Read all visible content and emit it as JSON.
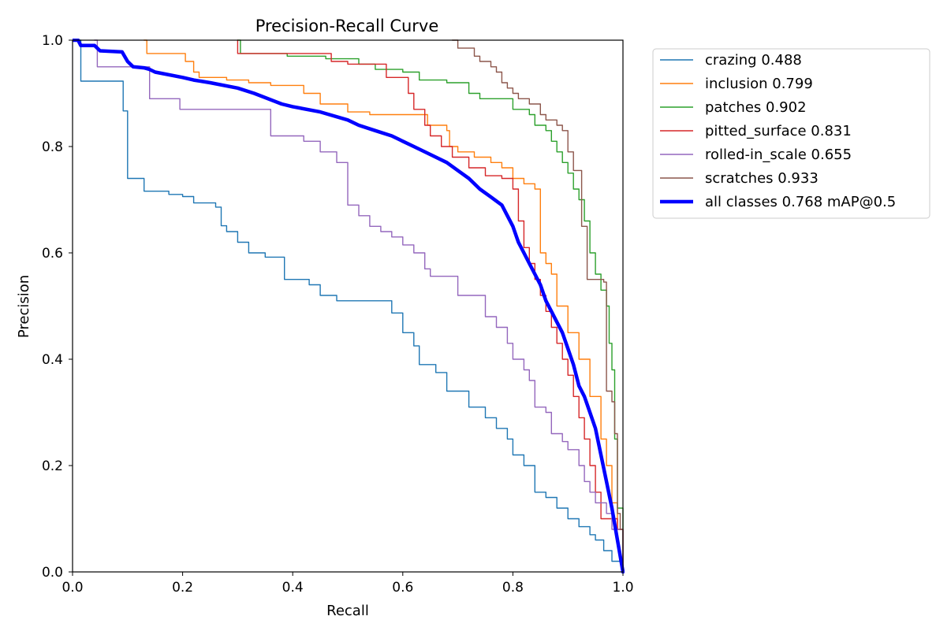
{
  "chart_data": {
    "type": "line",
    "title": "Precision-Recall Curve",
    "xlabel": "Recall",
    "ylabel": "Precision",
    "xlim": [
      0,
      1
    ],
    "ylim": [
      0,
      1
    ],
    "xticks": [
      "0.0",
      "0.2",
      "0.4",
      "0.6",
      "0.8",
      "1.0"
    ],
    "yticks": [
      "0.0",
      "0.2",
      "0.4",
      "0.6",
      "0.8",
      "1.0"
    ],
    "grid": false,
    "legend_position": "outside-top-right",
    "series": [
      {
        "name": "crazing 0.488",
        "color": "#1f77b4",
        "line_width": "thin",
        "step": true,
        "points": [
          [
            0.0,
            1.0
          ],
          [
            0.015,
            0.923
          ],
          [
            0.09,
            0.923
          ],
          [
            0.092,
            0.867
          ],
          [
            0.1,
            0.74
          ],
          [
            0.12,
            0.74
          ],
          [
            0.13,
            0.716
          ],
          [
            0.175,
            0.71
          ],
          [
            0.2,
            0.706
          ],
          [
            0.22,
            0.694
          ],
          [
            0.26,
            0.686
          ],
          [
            0.27,
            0.651
          ],
          [
            0.28,
            0.64
          ],
          [
            0.3,
            0.62
          ],
          [
            0.32,
            0.6
          ],
          [
            0.35,
            0.592
          ],
          [
            0.38,
            0.592
          ],
          [
            0.385,
            0.55
          ],
          [
            0.43,
            0.54
          ],
          [
            0.45,
            0.52
          ],
          [
            0.48,
            0.51
          ],
          [
            0.55,
            0.51
          ],
          [
            0.58,
            0.487
          ],
          [
            0.6,
            0.45
          ],
          [
            0.62,
            0.425
          ],
          [
            0.63,
            0.39
          ],
          [
            0.66,
            0.375
          ],
          [
            0.68,
            0.34
          ],
          [
            0.72,
            0.31
          ],
          [
            0.75,
            0.29
          ],
          [
            0.77,
            0.27
          ],
          [
            0.79,
            0.25
          ],
          [
            0.8,
            0.22
          ],
          [
            0.82,
            0.2
          ],
          [
            0.84,
            0.15
          ],
          [
            0.86,
            0.14
          ],
          [
            0.88,
            0.12
          ],
          [
            0.9,
            0.1
          ],
          [
            0.92,
            0.085
          ],
          [
            0.94,
            0.07
          ],
          [
            0.95,
            0.06
          ],
          [
            0.965,
            0.04
          ],
          [
            0.98,
            0.02
          ],
          [
            1.0,
            0.0
          ]
        ]
      },
      {
        "name": "inclusion 0.799",
        "color": "#ff7f0e",
        "line_width": "thin",
        "step": true,
        "points": [
          [
            0.13,
            1.0
          ],
          [
            0.135,
            0.975
          ],
          [
            0.2,
            0.975
          ],
          [
            0.205,
            0.96
          ],
          [
            0.22,
            0.94
          ],
          [
            0.23,
            0.93
          ],
          [
            0.28,
            0.925
          ],
          [
            0.32,
            0.92
          ],
          [
            0.36,
            0.915
          ],
          [
            0.42,
            0.9
          ],
          [
            0.45,
            0.88
          ],
          [
            0.5,
            0.865
          ],
          [
            0.54,
            0.86
          ],
          [
            0.64,
            0.86
          ],
          [
            0.645,
            0.84
          ],
          [
            0.68,
            0.83
          ],
          [
            0.685,
            0.8
          ],
          [
            0.7,
            0.79
          ],
          [
            0.73,
            0.78
          ],
          [
            0.76,
            0.77
          ],
          [
            0.78,
            0.76
          ],
          [
            0.8,
            0.74
          ],
          [
            0.82,
            0.73
          ],
          [
            0.84,
            0.72
          ],
          [
            0.85,
            0.6
          ],
          [
            0.86,
            0.58
          ],
          [
            0.87,
            0.56
          ],
          [
            0.88,
            0.5
          ],
          [
            0.9,
            0.45
          ],
          [
            0.92,
            0.4
          ],
          [
            0.94,
            0.33
          ],
          [
            0.96,
            0.25
          ],
          [
            0.97,
            0.2
          ],
          [
            0.98,
            0.13
          ],
          [
            0.99,
            0.08
          ],
          [
            1.0,
            0.0
          ]
        ]
      },
      {
        "name": "patches 0.902",
        "color": "#2ca02c",
        "line_width": "thin",
        "step": true,
        "points": [
          [
            0.3,
            1.0
          ],
          [
            0.305,
            0.975
          ],
          [
            0.38,
            0.975
          ],
          [
            0.39,
            0.97
          ],
          [
            0.46,
            0.965
          ],
          [
            0.52,
            0.955
          ],
          [
            0.55,
            0.945
          ],
          [
            0.6,
            0.94
          ],
          [
            0.63,
            0.925
          ],
          [
            0.68,
            0.92
          ],
          [
            0.72,
            0.9
          ],
          [
            0.74,
            0.89
          ],
          [
            0.79,
            0.89
          ],
          [
            0.8,
            0.87
          ],
          [
            0.82,
            0.87
          ],
          [
            0.83,
            0.86
          ],
          [
            0.84,
            0.84
          ],
          [
            0.86,
            0.83
          ],
          [
            0.87,
            0.81
          ],
          [
            0.88,
            0.79
          ],
          [
            0.89,
            0.77
          ],
          [
            0.9,
            0.75
          ],
          [
            0.91,
            0.72
          ],
          [
            0.92,
            0.7
          ],
          [
            0.93,
            0.66
          ],
          [
            0.94,
            0.6
          ],
          [
            0.95,
            0.56
          ],
          [
            0.96,
            0.53
          ],
          [
            0.97,
            0.5
          ],
          [
            0.975,
            0.43
          ],
          [
            0.98,
            0.38
          ],
          [
            0.985,
            0.25
          ],
          [
            0.99,
            0.12
          ],
          [
            1.0,
            0.0
          ]
        ]
      },
      {
        "name": "pitted_surface 0.831",
        "color": "#d62728",
        "line_width": "thin",
        "step": true,
        "points": [
          [
            0.3,
            1.0
          ],
          [
            0.3,
            0.975
          ],
          [
            0.46,
            0.975
          ],
          [
            0.47,
            0.96
          ],
          [
            0.5,
            0.955
          ],
          [
            0.56,
            0.955
          ],
          [
            0.57,
            0.93
          ],
          [
            0.6,
            0.93
          ],
          [
            0.61,
            0.9
          ],
          [
            0.62,
            0.87
          ],
          [
            0.64,
            0.84
          ],
          [
            0.65,
            0.82
          ],
          [
            0.67,
            0.8
          ],
          [
            0.69,
            0.78
          ],
          [
            0.72,
            0.76
          ],
          [
            0.75,
            0.745
          ],
          [
            0.78,
            0.74
          ],
          [
            0.8,
            0.72
          ],
          [
            0.81,
            0.66
          ],
          [
            0.82,
            0.61
          ],
          [
            0.83,
            0.58
          ],
          [
            0.84,
            0.55
          ],
          [
            0.85,
            0.52
          ],
          [
            0.86,
            0.49
          ],
          [
            0.87,
            0.46
          ],
          [
            0.88,
            0.43
          ],
          [
            0.89,
            0.4
          ],
          [
            0.9,
            0.37
          ],
          [
            0.91,
            0.33
          ],
          [
            0.92,
            0.29
          ],
          [
            0.93,
            0.25
          ],
          [
            0.94,
            0.2
          ],
          [
            0.95,
            0.15
          ],
          [
            0.96,
            0.1
          ],
          [
            0.99,
            0.08
          ],
          [
            1.0,
            0.0
          ]
        ]
      },
      {
        "name": "rolled-in_scale 0.655",
        "color": "#9467bd",
        "line_width": "thin",
        "step": true,
        "points": [
          [
            0.04,
            1.0
          ],
          [
            0.045,
            0.95
          ],
          [
            0.13,
            0.95
          ],
          [
            0.14,
            0.89
          ],
          [
            0.19,
            0.89
          ],
          [
            0.195,
            0.87
          ],
          [
            0.35,
            0.87
          ],
          [
            0.36,
            0.82
          ],
          [
            0.42,
            0.81
          ],
          [
            0.45,
            0.79
          ],
          [
            0.48,
            0.77
          ],
          [
            0.5,
            0.69
          ],
          [
            0.52,
            0.67
          ],
          [
            0.54,
            0.65
          ],
          [
            0.56,
            0.64
          ],
          [
            0.58,
            0.63
          ],
          [
            0.6,
            0.615
          ],
          [
            0.62,
            0.6
          ],
          [
            0.64,
            0.57
          ],
          [
            0.65,
            0.556
          ],
          [
            0.69,
            0.556
          ],
          [
            0.7,
            0.52
          ],
          [
            0.74,
            0.52
          ],
          [
            0.75,
            0.48
          ],
          [
            0.77,
            0.46
          ],
          [
            0.79,
            0.43
          ],
          [
            0.8,
            0.4
          ],
          [
            0.82,
            0.38
          ],
          [
            0.83,
            0.36
          ],
          [
            0.84,
            0.31
          ],
          [
            0.86,
            0.3
          ],
          [
            0.87,
            0.26
          ],
          [
            0.89,
            0.245
          ],
          [
            0.9,
            0.23
          ],
          [
            0.92,
            0.2
          ],
          [
            0.93,
            0.17
          ],
          [
            0.94,
            0.15
          ],
          [
            0.95,
            0.13
          ],
          [
            0.97,
            0.11
          ],
          [
            0.98,
            0.08
          ],
          [
            1.0,
            0.0
          ]
        ]
      },
      {
        "name": "scratches 0.933",
        "color": "#8c564b",
        "line_width": "thin",
        "step": true,
        "points": [
          [
            0.69,
            1.0
          ],
          [
            0.7,
            0.985
          ],
          [
            0.72,
            0.985
          ],
          [
            0.73,
            0.97
          ],
          [
            0.74,
            0.96
          ],
          [
            0.76,
            0.95
          ],
          [
            0.77,
            0.94
          ],
          [
            0.78,
            0.92
          ],
          [
            0.79,
            0.91
          ],
          [
            0.8,
            0.9
          ],
          [
            0.81,
            0.89
          ],
          [
            0.83,
            0.88
          ],
          [
            0.85,
            0.86
          ],
          [
            0.86,
            0.85
          ],
          [
            0.88,
            0.84
          ],
          [
            0.89,
            0.83
          ],
          [
            0.9,
            0.79
          ],
          [
            0.91,
            0.755
          ],
          [
            0.92,
            0.755
          ],
          [
            0.925,
            0.65
          ],
          [
            0.935,
            0.55
          ],
          [
            0.96,
            0.55
          ],
          [
            0.965,
            0.545
          ],
          [
            0.97,
            0.34
          ],
          [
            0.98,
            0.32
          ],
          [
            0.985,
            0.26
          ],
          [
            0.99,
            0.11
          ],
          [
            0.995,
            0.08
          ],
          [
            1.0,
            0.08
          ]
        ]
      },
      {
        "name": "all classes 0.768 mAP@0.5",
        "color": "#0000ff",
        "line_width": "thick",
        "step": false,
        "points": [
          [
            0.0,
            1.0
          ],
          [
            0.01,
            1.0
          ],
          [
            0.015,
            0.99
          ],
          [
            0.04,
            0.99
          ],
          [
            0.05,
            0.98
          ],
          [
            0.09,
            0.978
          ],
          [
            0.1,
            0.96
          ],
          [
            0.11,
            0.95
          ],
          [
            0.13,
            0.948
          ],
          [
            0.14,
            0.945
          ],
          [
            0.15,
            0.94
          ],
          [
            0.2,
            0.93
          ],
          [
            0.22,
            0.925
          ],
          [
            0.25,
            0.92
          ],
          [
            0.3,
            0.91
          ],
          [
            0.33,
            0.9
          ],
          [
            0.38,
            0.88
          ],
          [
            0.4,
            0.875
          ],
          [
            0.45,
            0.865
          ],
          [
            0.5,
            0.85
          ],
          [
            0.52,
            0.84
          ],
          [
            0.55,
            0.83
          ],
          [
            0.58,
            0.82
          ],
          [
            0.6,
            0.81
          ],
          [
            0.62,
            0.8
          ],
          [
            0.65,
            0.785
          ],
          [
            0.68,
            0.77
          ],
          [
            0.7,
            0.755
          ],
          [
            0.72,
            0.74
          ],
          [
            0.74,
            0.72
          ],
          [
            0.76,
            0.705
          ],
          [
            0.78,
            0.69
          ],
          [
            0.79,
            0.67
          ],
          [
            0.8,
            0.65
          ],
          [
            0.81,
            0.62
          ],
          [
            0.82,
            0.6
          ],
          [
            0.83,
            0.58
          ],
          [
            0.84,
            0.56
          ],
          [
            0.85,
            0.54
          ],
          [
            0.86,
            0.51
          ],
          [
            0.87,
            0.49
          ],
          [
            0.88,
            0.47
          ],
          [
            0.89,
            0.45
          ],
          [
            0.9,
            0.42
          ],
          [
            0.91,
            0.39
          ],
          [
            0.92,
            0.35
          ],
          [
            0.93,
            0.33
          ],
          [
            0.94,
            0.3
          ],
          [
            0.95,
            0.27
          ],
          [
            0.96,
            0.22
          ],
          [
            0.97,
            0.17
          ],
          [
            0.98,
            0.12
          ],
          [
            0.99,
            0.06
          ],
          [
            1.0,
            0.0
          ]
        ]
      }
    ]
  }
}
